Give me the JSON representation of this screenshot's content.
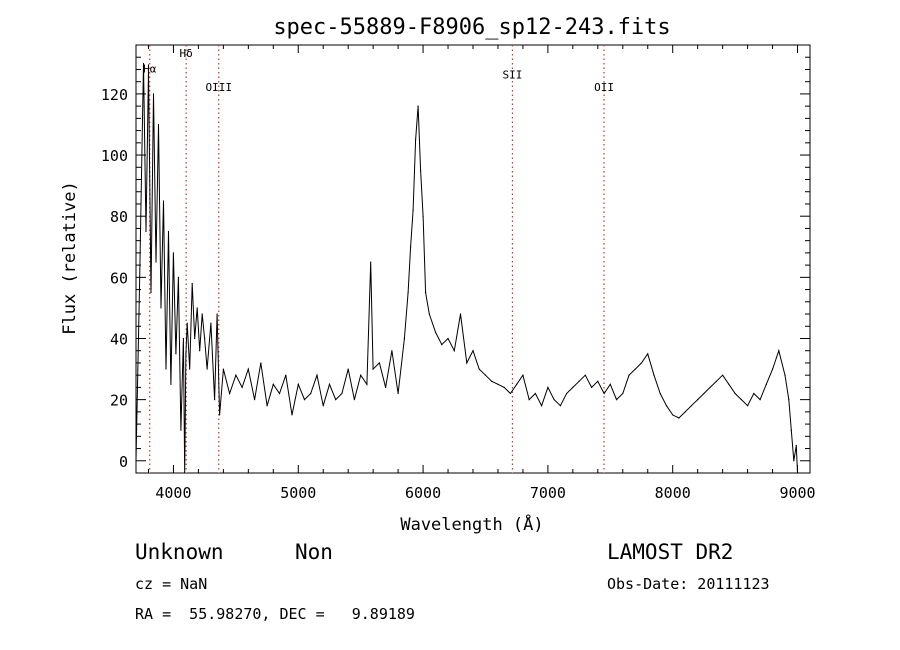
{
  "chart_data": {
    "type": "line",
    "title": "spec-55889-F8906_sp12-243.fits",
    "xlabel": "Wavelength (Å)",
    "ylabel": "Flux (relative)",
    "xlim": [
      3700,
      9100
    ],
    "ylim": [
      -4,
      136
    ],
    "x_ticks": [
      4000,
      5000,
      6000,
      7000,
      8000,
      9000
    ],
    "y_ticks": [
      0,
      20,
      40,
      60,
      80,
      100,
      120
    ],
    "grid": false,
    "series": [
      {
        "color": "#000000",
        "x": [
          3700,
          3730,
          3760,
          3780,
          3800,
          3820,
          3840,
          3860,
          3880,
          3900,
          3920,
          3940,
          3960,
          3980,
          4000,
          4020,
          4040,
          4060,
          4080,
          4090,
          4100,
          4110,
          4130,
          4150,
          4170,
          4190,
          4210,
          4230,
          4250,
          4270,
          4300,
          4330,
          4350,
          4370,
          4400,
          4450,
          4500,
          4550,
          4600,
          4650,
          4700,
          4750,
          4800,
          4850,
          4900,
          4950,
          5000,
          5050,
          5100,
          5150,
          5200,
          5250,
          5300,
          5350,
          5400,
          5450,
          5500,
          5550,
          5580,
          5600,
          5650,
          5700,
          5750,
          5800,
          5850,
          5880,
          5900,
          5920,
          5940,
          5960,
          5980,
          6000,
          6020,
          6050,
          6100,
          6150,
          6200,
          6250,
          6300,
          6350,
          6400,
          6450,
          6500,
          6550,
          6600,
          6650,
          6700,
          6750,
          6800,
          6850,
          6900,
          6950,
          7000,
          7050,
          7100,
          7150,
          7200,
          7250,
          7300,
          7350,
          7400,
          7450,
          7500,
          7550,
          7600,
          7650,
          7700,
          7750,
          7800,
          7850,
          7900,
          7950,
          8000,
          8050,
          8100,
          8150,
          8200,
          8250,
          8300,
          8350,
          8400,
          8450,
          8500,
          8550,
          8600,
          8650,
          8700,
          8750,
          8800,
          8850,
          8900,
          8930,
          8950,
          8970,
          8990,
          9000
        ],
        "y": [
          0,
          60,
          130,
          75,
          128,
          55,
          120,
          65,
          110,
          50,
          85,
          30,
          75,
          25,
          68,
          35,
          60,
          10,
          40,
          -4,
          35,
          45,
          30,
          58,
          40,
          50,
          36,
          48,
          40,
          30,
          45,
          20,
          48,
          15,
          30,
          22,
          28,
          24,
          30,
          20,
          32,
          18,
          25,
          22,
          28,
          15,
          25,
          20,
          22,
          28,
          18,
          25,
          20,
          22,
          30,
          20,
          28,
          25,
          65,
          30,
          32,
          24,
          36,
          22,
          40,
          55,
          70,
          82,
          105,
          116,
          95,
          80,
          55,
          48,
          42,
          38,
          40,
          36,
          48,
          32,
          36,
          30,
          28,
          26,
          25,
          24,
          22,
          25,
          28,
          20,
          22,
          18,
          24,
          20,
          18,
          22,
          24,
          26,
          28,
          24,
          26,
          22,
          25,
          20,
          22,
          28,
          30,
          32,
          35,
          28,
          22,
          18,
          15,
          14,
          16,
          18,
          20,
          22,
          24,
          26,
          28,
          25,
          22,
          20,
          18,
          22,
          20,
          25,
          30,
          36,
          28,
          20,
          10,
          0,
          5,
          -4
        ]
      }
    ],
    "lines": [
      {
        "x": 3810,
        "label": "Hα",
        "label_y": 127
      },
      {
        "x": 4102,
        "label": "Hδ",
        "label_y": 132
      },
      {
        "x": 4363,
        "label": "OIII",
        "label_y": 121
      },
      {
        "x": 6716,
        "label": "SII",
        "label_y": 125
      },
      {
        "x": 7450,
        "label": "OII",
        "label_y": 121
      }
    ],
    "line_color": "#cc3333"
  },
  "info": {
    "object_class": "Unknown",
    "object_subclass": "Non",
    "survey": "LAMOST DR2",
    "cz": "cz = NaN",
    "obs_date": "Obs-Date: 20111123",
    "coords": "RA =  55.98270, DEC =   9.89189"
  }
}
